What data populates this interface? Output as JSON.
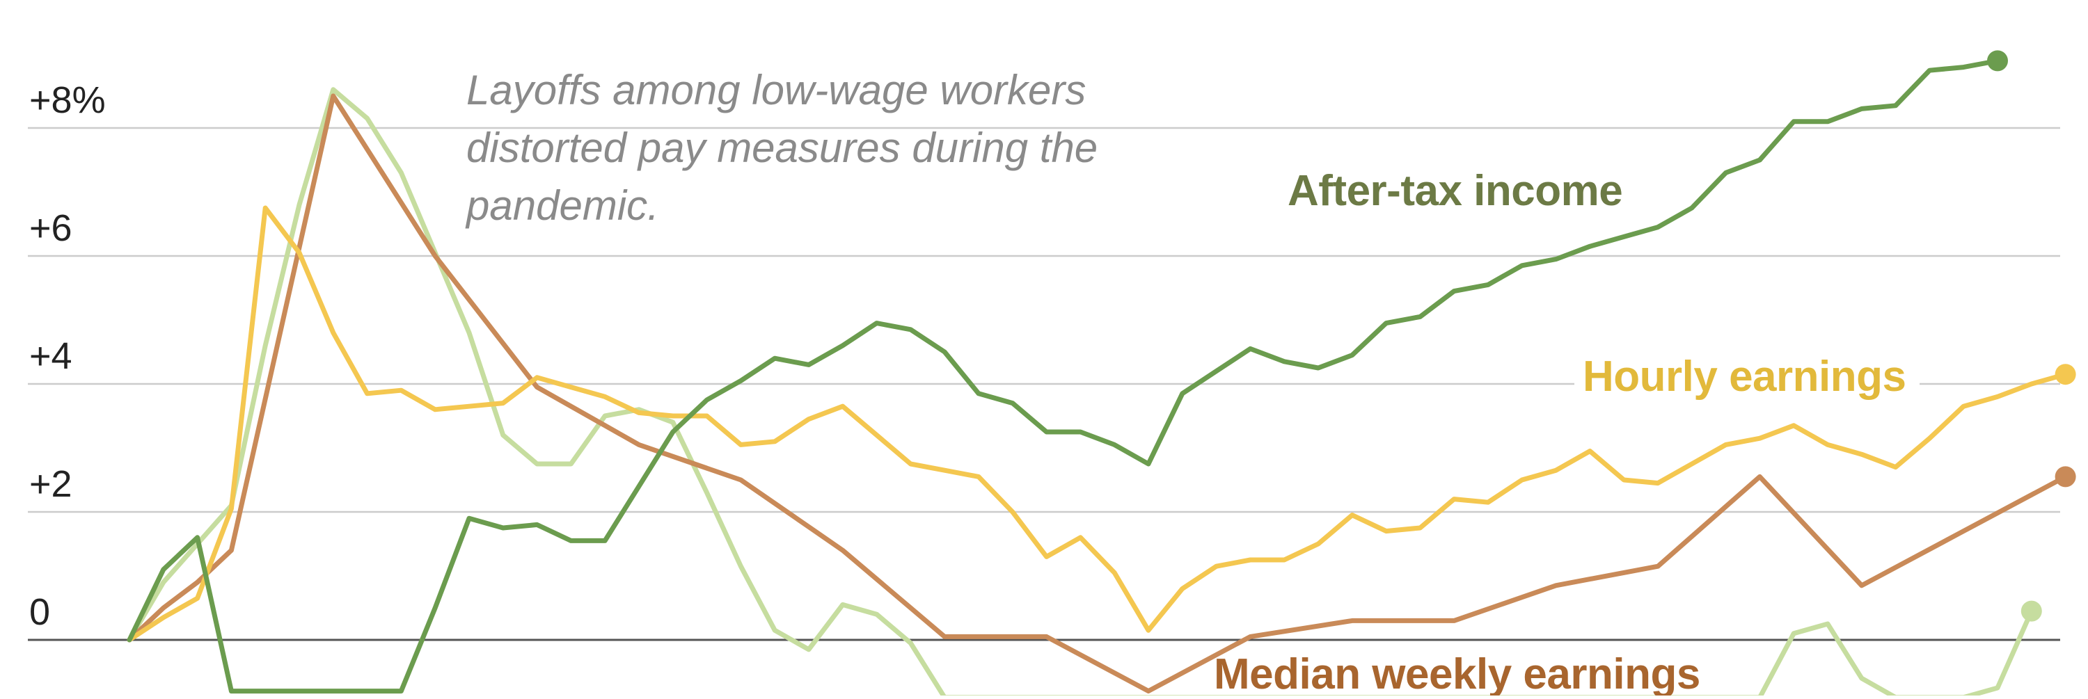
{
  "chart_data": {
    "type": "line",
    "yaxis": {
      "ticks": [
        0,
        2,
        4,
        6,
        8
      ],
      "tick_labels": [
        "0",
        "+2",
        "+4",
        "+6",
        "+8%"
      ],
      "range": [
        -0.9,
        9.9
      ]
    },
    "xaxis": {
      "index_range": [
        0,
        58
      ],
      "tick_labels_visible": false
    },
    "grid": true,
    "legend": "direct labels on lines",
    "annotation": {
      "lines": [
        "Layoffs among low-wage workers",
        "distorted pay measures during the",
        "pandemic."
      ]
    },
    "series": [
      {
        "name": "After-tax income",
        "color": "#6b9c4e",
        "label_color": "#6c7a45",
        "end_marker": true,
        "points": [
          [
            0,
            0
          ],
          [
            1,
            1.1
          ],
          [
            2,
            1.6
          ],
          [
            3,
            -0.8
          ],
          [
            8,
            -0.8
          ],
          [
            9,
            0.5
          ],
          [
            10,
            1.9
          ],
          [
            11,
            1.75
          ],
          [
            12,
            1.8
          ],
          [
            13,
            1.55
          ],
          [
            14,
            1.55
          ],
          [
            15,
            2.4
          ],
          [
            16,
            3.25
          ],
          [
            17,
            3.75
          ],
          [
            18,
            4.05
          ],
          [
            19,
            4.4
          ],
          [
            20,
            4.3
          ],
          [
            21,
            4.6
          ],
          [
            22,
            4.95
          ],
          [
            23,
            4.85
          ],
          [
            24,
            4.5
          ],
          [
            25,
            3.85
          ],
          [
            26,
            3.7
          ],
          [
            27,
            3.25
          ],
          [
            28,
            3.25
          ],
          [
            29,
            3.05
          ],
          [
            30,
            2.75
          ],
          [
            31,
            3.85
          ],
          [
            32,
            4.2
          ],
          [
            33,
            4.55
          ],
          [
            34,
            4.35
          ],
          [
            35,
            4.25
          ],
          [
            36,
            4.45
          ],
          [
            37,
            4.95
          ],
          [
            38,
            5.05
          ],
          [
            39,
            5.45
          ],
          [
            40,
            5.55
          ],
          [
            41,
            5.85
          ],
          [
            42,
            5.95
          ],
          [
            43,
            6.15
          ],
          [
            44,
            6.3
          ],
          [
            45,
            6.45
          ],
          [
            46,
            6.75
          ],
          [
            47,
            7.3
          ],
          [
            48,
            7.5
          ],
          [
            49,
            8.1
          ],
          [
            50,
            8.1
          ],
          [
            51,
            8.3
          ],
          [
            52,
            8.35
          ],
          [
            53,
            8.9
          ],
          [
            54,
            8.95
          ],
          [
            55,
            9.05
          ]
        ]
      },
      {
        "name": "Hourly earnings",
        "color": "#f4c750",
        "label_color": "#e2b93b",
        "end_marker": true,
        "points": [
          [
            0,
            0
          ],
          [
            1,
            0.35
          ],
          [
            2,
            0.65
          ],
          [
            3,
            2.05
          ],
          [
            4,
            6.75
          ],
          [
            5,
            6.05
          ],
          [
            6,
            4.8
          ],
          [
            7,
            3.85
          ],
          [
            8,
            3.9
          ],
          [
            9,
            3.6
          ],
          [
            10,
            3.65
          ],
          [
            11,
            3.7
          ],
          [
            12,
            4.1
          ],
          [
            13,
            3.95
          ],
          [
            14,
            3.8
          ],
          [
            15,
            3.55
          ],
          [
            16,
            3.5
          ],
          [
            17,
            3.5
          ],
          [
            18,
            3.05
          ],
          [
            19,
            3.1
          ],
          [
            20,
            3.45
          ],
          [
            21,
            3.65
          ],
          [
            22,
            3.2
          ],
          [
            23,
            2.75
          ],
          [
            24,
            2.65
          ],
          [
            25,
            2.55
          ],
          [
            26,
            2.0
          ],
          [
            27,
            1.3
          ],
          [
            28,
            1.6
          ],
          [
            29,
            1.05
          ],
          [
            30,
            0.15
          ],
          [
            31,
            0.8
          ],
          [
            32,
            1.15
          ],
          [
            33,
            1.25
          ],
          [
            34,
            1.25
          ],
          [
            35,
            1.5
          ],
          [
            36,
            1.95
          ],
          [
            37,
            1.7
          ],
          [
            38,
            1.75
          ],
          [
            39,
            2.2
          ],
          [
            40,
            2.15
          ],
          [
            41,
            2.5
          ],
          [
            42,
            2.65
          ],
          [
            43,
            2.95
          ],
          [
            44,
            2.5
          ],
          [
            45,
            2.45
          ],
          [
            46,
            2.75
          ],
          [
            47,
            3.05
          ],
          [
            48,
            3.15
          ],
          [
            49,
            3.35
          ],
          [
            50,
            3.05
          ],
          [
            51,
            2.9
          ],
          [
            52,
            2.7
          ],
          [
            53,
            3.15
          ],
          [
            54,
            3.65
          ],
          [
            55,
            3.8
          ],
          [
            56,
            4.0
          ],
          [
            57,
            4.15
          ]
        ]
      },
      {
        "name": "Median weekly earnings",
        "color": "#c98a58",
        "label_color": "#a8652e",
        "end_marker": true,
        "points": [
          [
            0,
            0
          ],
          [
            1,
            0.5
          ],
          [
            2,
            0.9
          ],
          [
            3,
            1.4
          ],
          [
            6,
            8.5
          ],
          [
            9,
            6.0
          ],
          [
            12,
            3.95
          ],
          [
            15,
            3.05
          ],
          [
            18,
            2.5
          ],
          [
            21,
            1.4
          ],
          [
            24,
            0.05
          ],
          [
            27,
            0.05
          ],
          [
            30,
            -0.8
          ],
          [
            33,
            0.05
          ],
          [
            36,
            0.3
          ],
          [
            39,
            0.3
          ],
          [
            42,
            0.85
          ],
          [
            45,
            1.15
          ],
          [
            48,
            2.55
          ],
          [
            51,
            0.85
          ],
          [
            54,
            1.7
          ],
          [
            57,
            2.55
          ]
        ]
      },
      {
        "name": "",
        "color": "#c6dd9f",
        "end_marker": true,
        "points": [
          [
            0,
            0
          ],
          [
            1,
            0.9
          ],
          [
            2,
            1.5
          ],
          [
            3,
            2.1
          ],
          [
            4,
            4.6
          ],
          [
            5,
            6.8
          ],
          [
            6,
            8.6
          ],
          [
            7,
            8.15
          ],
          [
            8,
            7.3
          ],
          [
            9,
            6.05
          ],
          [
            10,
            4.8
          ],
          [
            11,
            3.2
          ],
          [
            12,
            2.75
          ],
          [
            13,
            2.75
          ],
          [
            14,
            3.5
          ],
          [
            15,
            3.6
          ],
          [
            16,
            3.4
          ],
          [
            17,
            2.3
          ],
          [
            18,
            1.15
          ],
          [
            19,
            0.15
          ],
          [
            20,
            -0.15
          ],
          [
            21,
            0.55
          ],
          [
            22,
            0.4
          ],
          [
            23,
            -0.05
          ],
          [
            24,
            -0.9
          ],
          [
            48,
            -0.9
          ],
          [
            49,
            0.1
          ],
          [
            50,
            0.25
          ],
          [
            51,
            -0.6
          ],
          [
            52,
            -0.9
          ],
          [
            54,
            -0.9
          ],
          [
            55,
            -0.75
          ],
          [
            56,
            0.45
          ]
        ]
      }
    ]
  }
}
